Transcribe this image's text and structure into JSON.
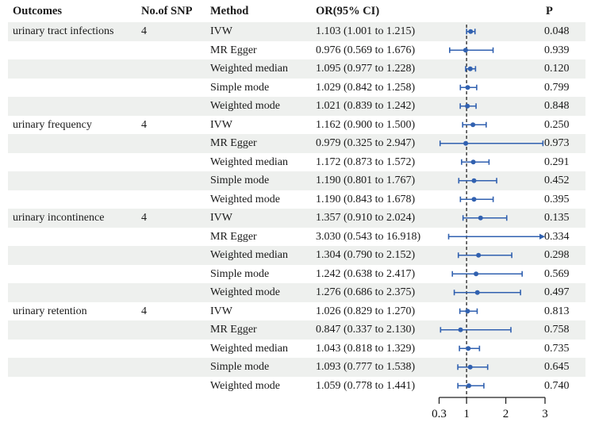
{
  "header": {
    "outcomes": "Outcomes",
    "snp": "No.of SNP",
    "method": "Method",
    "or_ci": "OR(95% CI)",
    "p": "P"
  },
  "colors": {
    "marker_blue": "#3161b0",
    "row_shade": "#eef0ee",
    "reference_line": "#222222",
    "axis": "#222222"
  },
  "chart_data": {
    "type": "scatter",
    "variant": "forest-plot",
    "title": "",
    "xlabel": "",
    "axis": {
      "min": 0.3,
      "max": 3,
      "tick_labels": [
        "0.3",
        "1",
        "2",
        "3"
      ],
      "tick_values": [
        0.3,
        1,
        2,
        3
      ],
      "reference_line": 1,
      "scale": "linear"
    },
    "rows": [
      {
        "outcome": "urinary tract infections",
        "snp": "4",
        "method": "IVW",
        "or_ci": "1.103 (1.001 to 1.215)",
        "p": "0.048",
        "est": 1.103,
        "lo": 1.001,
        "hi": 1.215,
        "arrow_right": false
      },
      {
        "outcome": "",
        "snp": "",
        "method": "MR Egger",
        "or_ci": "0.976 (0.569 to 1.676)",
        "p": "0.939",
        "est": 0.976,
        "lo": 0.569,
        "hi": 1.676,
        "arrow_right": false
      },
      {
        "outcome": "",
        "snp": "",
        "method": "Weighted median",
        "or_ci": "1.095 (0.977 to 1.228)",
        "p": "0.120",
        "est": 1.095,
        "lo": 0.977,
        "hi": 1.228,
        "arrow_right": false
      },
      {
        "outcome": "",
        "snp": "",
        "method": "Simple mode",
        "or_ci": "1.029 (0.842 to 1.258)",
        "p": "0.799",
        "est": 1.029,
        "lo": 0.842,
        "hi": 1.258,
        "arrow_right": false
      },
      {
        "outcome": "",
        "snp": "",
        "method": "Weighted mode",
        "or_ci": "1.021 (0.839 to 1.242)",
        "p": "0.848",
        "est": 1.021,
        "lo": 0.839,
        "hi": 1.242,
        "arrow_right": false
      },
      {
        "outcome": "urinary frequency",
        "snp": "4",
        "method": "IVW",
        "or_ci": "1.162 (0.900 to 1.500)",
        "p": "0.250",
        "est": 1.162,
        "lo": 0.9,
        "hi": 1.5,
        "arrow_right": false
      },
      {
        "outcome": "",
        "snp": "",
        "method": "MR Egger",
        "or_ci": "0.979 (0.325 to 2.947)",
        "p": "0.973",
        "est": 0.979,
        "lo": 0.325,
        "hi": 2.947,
        "arrow_right": false
      },
      {
        "outcome": "",
        "snp": "",
        "method": "Weighted median",
        "or_ci": "1.172 (0.873 to 1.572)",
        "p": "0.291",
        "est": 1.172,
        "lo": 0.873,
        "hi": 1.572,
        "arrow_right": false
      },
      {
        "outcome": "",
        "snp": "",
        "method": "Simple mode",
        "or_ci": "1.190 (0.801 to 1.767)",
        "p": "0.452",
        "est": 1.19,
        "lo": 0.801,
        "hi": 1.767,
        "arrow_right": false
      },
      {
        "outcome": "",
        "snp": "",
        "method": "Weighted mode",
        "or_ci": "1.190 (0.843 to 1.678)",
        "p": "0.395",
        "est": 1.19,
        "lo": 0.843,
        "hi": 1.678,
        "arrow_right": false
      },
      {
        "outcome": "urinary incontinence",
        "snp": "4",
        "method": "IVW",
        "or_ci": "1.357 (0.910 to 2.024)",
        "p": "0.135",
        "est": 1.357,
        "lo": 0.91,
        "hi": 2.024,
        "arrow_right": false
      },
      {
        "outcome": "",
        "snp": "",
        "method": "MR Egger",
        "or_ci": "3.030 (0.543 to 16.918)",
        "p": "0.334",
        "est": 3.03,
        "lo": 0.543,
        "hi": 16.918,
        "arrow_right": true
      },
      {
        "outcome": "",
        "snp": "",
        "method": "Weighted median",
        "or_ci": "1.304 (0.790 to 2.152)",
        "p": "0.298",
        "est": 1.304,
        "lo": 0.79,
        "hi": 2.152,
        "arrow_right": false
      },
      {
        "outcome": "",
        "snp": "",
        "method": "Simple mode",
        "or_ci": "1.242 (0.638 to 2.417)",
        "p": "0.569",
        "est": 1.242,
        "lo": 0.638,
        "hi": 2.417,
        "arrow_right": false
      },
      {
        "outcome": "",
        "snp": "",
        "method": "Weighted mode",
        "or_ci": "1.276 (0.686 to 2.375)",
        "p": "0.497",
        "est": 1.276,
        "lo": 0.686,
        "hi": 2.375,
        "arrow_right": false
      },
      {
        "outcome": "urinary retention",
        "snp": "4",
        "method": "IVW",
        "or_ci": "1.026 (0.829 to 1.270)",
        "p": "0.813",
        "est": 1.026,
        "lo": 0.829,
        "hi": 1.27,
        "arrow_right": false
      },
      {
        "outcome": "",
        "snp": "",
        "method": "MR Egger",
        "or_ci": "0.847 (0.337 to 2.130)",
        "p": "0.758",
        "est": 0.847,
        "lo": 0.337,
        "hi": 2.13,
        "arrow_right": false
      },
      {
        "outcome": "",
        "snp": "",
        "method": "Weighted median",
        "or_ci": "1.043 (0.818 to 1.329)",
        "p": "0.735",
        "est": 1.043,
        "lo": 0.818,
        "hi": 1.329,
        "arrow_right": false
      },
      {
        "outcome": "",
        "snp": "",
        "method": "Simple mode",
        "or_ci": "1.093 (0.777 to 1.538)",
        "p": "0.645",
        "est": 1.093,
        "lo": 0.777,
        "hi": 1.538,
        "arrow_right": false
      },
      {
        "outcome": "",
        "snp": "",
        "method": "Weighted mode",
        "or_ci": "1.059 (0.778 to 1.441)",
        "p": "0.740",
        "est": 1.059,
        "lo": 0.778,
        "hi": 1.441,
        "arrow_right": false
      }
    ]
  }
}
